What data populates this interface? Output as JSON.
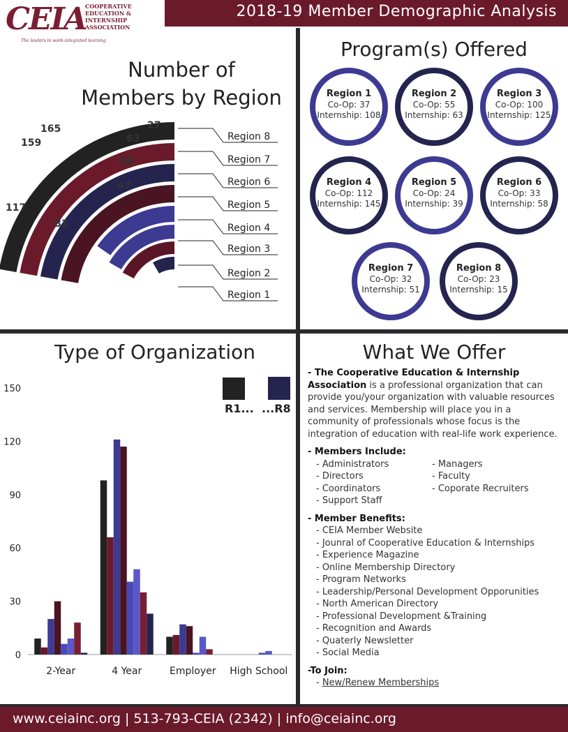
{
  "header": {
    "title": "2018-19 Member Demographic Analysis",
    "logo_text": "CEIA",
    "logo_org": [
      "COOPERATIVE",
      "EDUCATION &",
      "INTERNSHIP",
      "ASSOCIATION"
    ],
    "logo_tagline": "The leaders in work-integrated learning"
  },
  "regions_chart": {
    "title_line1": "Number of",
    "title_line2": "Members by Region",
    "labels": [
      "Region 8",
      "Region 7",
      "Region 6",
      "Region 5",
      "Region 4",
      "Region 3",
      "Region 2",
      "Region 1"
    ],
    "values": [
      "27",
      "63",
      "58",
      "47",
      "165",
      "159",
      "81",
      "117"
    ]
  },
  "programs": {
    "title": "Program(s) Offered",
    "items": [
      {
        "name": "Region 1",
        "coop": "Co-Op: 37",
        "intern": "Internship: 108"
      },
      {
        "name": "Region 2",
        "coop": "Co-Op: 55",
        "intern": "Internship: 63"
      },
      {
        "name": "Region 3",
        "coop": "Co-Op: 100",
        "intern": "Internship: 125"
      },
      {
        "name": "Region 4",
        "coop": "Co-Op: 112",
        "intern": "Internship: 145"
      },
      {
        "name": "Region 5",
        "coop": "Co-Op: 24",
        "intern": "Internship: 39"
      },
      {
        "name": "Region 6",
        "coop": "Co-Op: 33",
        "intern": "Internship: 58"
      },
      {
        "name": "Region 7",
        "coop": "Co-Op: 32",
        "intern": "Internship: 51"
      },
      {
        "name": "Region 8",
        "coop": "Co-Op: 23",
        "intern": "Internship: 15"
      }
    ]
  },
  "chart_data": {
    "type": "bar",
    "title": "Type of Organization",
    "categories": [
      "2-Year",
      "4 Year",
      "Employer",
      "High School"
    ],
    "ylim": [
      0,
      150
    ],
    "yticks": [
      "0",
      "30",
      "60",
      "90",
      "120",
      "150"
    ],
    "legend": {
      "first": "R1...",
      "last": "...R8"
    },
    "series": [
      {
        "values": [
          9,
          98,
          10,
          0
        ],
        "color": "#222222"
      },
      {
        "values": [
          4,
          66,
          11,
          0
        ],
        "color": "#6b1a2c"
      },
      {
        "values": [
          20,
          121,
          17,
          0
        ],
        "color": "#3d3a92"
      },
      {
        "values": [
          30,
          117,
          16,
          0
        ],
        "color": "#4a1422"
      },
      {
        "values": [
          6,
          41,
          1,
          1
        ],
        "color": "#4a49b8"
      },
      {
        "values": [
          9,
          48,
          10,
          2
        ],
        "color": "#5a58c8"
      },
      {
        "values": [
          18,
          35,
          3,
          0
        ],
        "color": "#7a1f33"
      },
      {
        "values": [
          1,
          23,
          0,
          0
        ],
        "color": "#25244f"
      }
    ]
  },
  "offer": {
    "title": "What We Offer",
    "intro_bold": "- The Cooperative Education & Internship Association",
    "intro_rest": " is a professional organization that can provide you/your organization with valuable resources and services. Membership will place you in a community of professionals whose focus is the integration of education with real-life work experience.",
    "members_head": "- Members Include:",
    "members_col1": [
      "- Administrators",
      "- Directors",
      "- Coordinators",
      "- Support Staff"
    ],
    "members_col2": [
      "- Managers",
      "- Faculty",
      "- Coporate Recruiters"
    ],
    "benefits_head": "- Member Benefits:",
    "benefits": [
      "- CEIA Member Website",
      "- Jounral of Cooperative Education & Internships",
      "- Experience Magazine",
      "- Online Membership Directory",
      "- Program Networks",
      "- Leadership/Personal Development Opporunities",
      "- North American Directory",
      "- Professional Development &Training",
      "- Recognition and Awards",
      "- Quaterly Newsletter",
      "- Social Media"
    ],
    "join_head": "-To Join:",
    "join_link": "New/Renew Memberships"
  },
  "footer": {
    "text": "www.ceiainc.org | 513-793-CEIA (2342) | info@ceiainc.org"
  }
}
